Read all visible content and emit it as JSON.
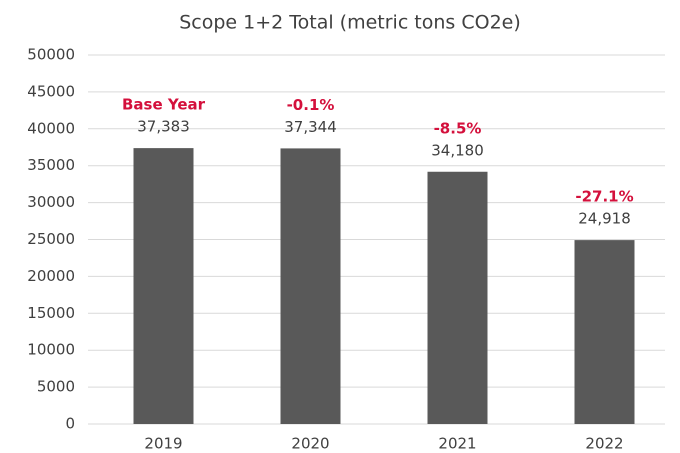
{
  "chart_data": {
    "type": "bar",
    "title": "Scope 1+2 Total (metric tons CO2e)",
    "categories": [
      "2019",
      "2020",
      "2021",
      "2022"
    ],
    "values": [
      37383,
      37344,
      34180,
      24918
    ],
    "value_labels": [
      "37,383",
      "37,344",
      "34,180",
      "24,918"
    ],
    "annotations": [
      "Base Year",
      "-0.1%",
      "-8.5%",
      "-27.1%"
    ],
    "color": "#595959",
    "annotation_color": "#d4103c",
    "ylim": [
      0,
      50000
    ],
    "yticks": [
      0,
      5000,
      10000,
      15000,
      20000,
      25000,
      30000,
      35000,
      40000,
      45000,
      50000
    ],
    "grid": true
  }
}
